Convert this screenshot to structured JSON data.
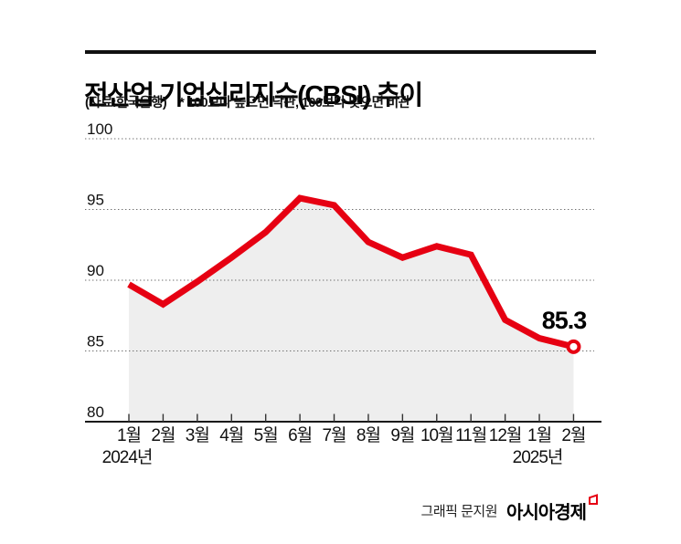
{
  "header": {
    "title": "전산업 기업심리지수(CBSI) 추이",
    "source_note": "(자료:한국은행)",
    "legend_note": "* 100보다 높으면 낙관, 100보다 낮으면 비관"
  },
  "chart_data": {
    "type": "line",
    "title": "전산업 기업심리지수(CBSI) 추이",
    "series_name": "전산업 기업심리지수(CBSI)",
    "categories": [
      "1월",
      "2월",
      "3월",
      "4월",
      "5월",
      "6월",
      "7월",
      "8월",
      "9월",
      "10월",
      "11월",
      "12월",
      "1월",
      "2월"
    ],
    "year_markers": [
      {
        "index": 0,
        "label": "2024년"
      },
      {
        "index": 12,
        "label": "2025년"
      }
    ],
    "values": [
      89.7,
      88.3,
      89.9,
      91.6,
      93.4,
      95.8,
      95.3,
      92.7,
      91.6,
      92.4,
      91.8,
      87.2,
      85.9,
      85.3
    ],
    "ylim": [
      80,
      100
    ],
    "y_ticks": [
      100,
      95,
      90,
      85,
      80
    ],
    "grid": true,
    "legend": "none",
    "annotation": {
      "text": "85.3",
      "point_index": 13
    },
    "colors": {
      "line": "#e60012",
      "area": "#eeeeee",
      "marker_fill": "#ffffff",
      "grid": "#6e6e6e",
      "axis": "#1a1a1a"
    }
  },
  "footer": {
    "credit": "그래픽 문지원",
    "brand": "아시아경제"
  }
}
